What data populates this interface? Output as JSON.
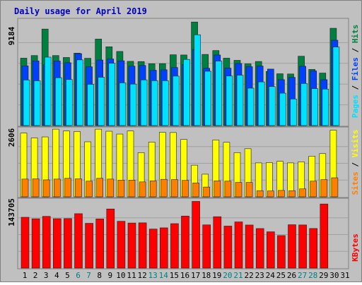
{
  "colors": {
    "background": "#c0c0c0",
    "hits": "#008040",
    "files": "#0040ff",
    "pages": "#00e0ff",
    "visits": "#ffff00",
    "sites": "#ff8000",
    "kbytes": "#ff0000",
    "title": "#0000c0",
    "weekend_label": "#008080"
  },
  "chart_data": [
    {
      "type": "bar",
      "title": "Daily usage for April 2019",
      "ymax_label": "9184",
      "ylim": [
        0,
        9184
      ],
      "legend": [
        "Pages",
        "Files",
        "Hits"
      ],
      "categories": [
        "1",
        "2",
        "3",
        "4",
        "5",
        "6",
        "7",
        "8",
        "9",
        "10",
        "11",
        "12",
        "13",
        "14",
        "15",
        "16",
        "17",
        "18",
        "19",
        "20",
        "21",
        "22",
        "23",
        "24",
        "25",
        "26",
        "27",
        "28",
        "29",
        "30",
        "31"
      ],
      "weekend_days": [
        "6",
        "7",
        "13",
        "14",
        "20",
        "21",
        "27",
        "28"
      ],
      "series": [
        {
          "name": "Hits",
          "values": [
            5930,
            6160,
            8490,
            6160,
            5990,
            6370,
            5920,
            7610,
            6930,
            6520,
            5650,
            5630,
            5440,
            5450,
            6230,
            6210,
            9110,
            6260,
            6600,
            5930,
            5740,
            5430,
            5640,
            4760,
            4560,
            4540,
            6100,
            4940,
            4620,
            8560,
            null
          ]
        },
        {
          "name": "Files",
          "values": [
            5250,
            5690,
            5350,
            5680,
            5530,
            6330,
            5170,
            5770,
            5860,
            5700,
            5230,
            5290,
            4870,
            4910,
            5110,
            5370,
            6700,
            5040,
            6210,
            5050,
            5460,
            5180,
            5240,
            4970,
            4040,
            4240,
            5220,
            4810,
            4040,
            7510,
            null
          ]
        },
        {
          "name": "Pages",
          "values": [
            4010,
            3940,
            6020,
            4210,
            4050,
            5780,
            3630,
            4250,
            5480,
            3760,
            3650,
            4020,
            3950,
            3950,
            4350,
            5820,
            7990,
            4780,
            5670,
            4360,
            4430,
            3290,
            3840,
            3430,
            2850,
            2340,
            3700,
            3250,
            3210,
            6910,
            null
          ]
        }
      ]
    },
    {
      "type": "bar",
      "ymax_label": "2606",
      "ylim": [
        0,
        2606
      ],
      "legend": [
        "Sites",
        "Visits"
      ],
      "categories": [
        "1",
        "2",
        "3",
        "4",
        "5",
        "6",
        "7",
        "8",
        "9",
        "10",
        "11",
        "12",
        "13",
        "14",
        "15",
        "16",
        "17",
        "18",
        "19",
        "20",
        "21",
        "22",
        "23",
        "24",
        "25",
        "26",
        "27",
        "28",
        "29",
        "30",
        "31"
      ],
      "series": [
        {
          "name": "Visits",
          "values": [
            2480,
            2290,
            2330,
            2630,
            2560,
            2540,
            2140,
            2630,
            2550,
            2440,
            2560,
            1720,
            2130,
            2510,
            2500,
            2230,
            1230,
            880,
            2210,
            2120,
            1720,
            1870,
            1320,
            1330,
            1380,
            1320,
            1360,
            1580,
            1680,
            2590,
            null
          ]
        },
        {
          "name": "Sites",
          "values": [
            690,
            700,
            660,
            690,
            720,
            700,
            610,
            720,
            690,
            650,
            650,
            580,
            620,
            680,
            670,
            640,
            540,
            380,
            620,
            610,
            560,
            560,
            240,
            230,
            250,
            240,
            310,
            610,
            670,
            740,
            null
          ]
        }
      ]
    },
    {
      "type": "bar",
      "ymax_label": "143705",
      "ylim": [
        0,
        143705
      ],
      "legend": [
        "KBytes"
      ],
      "categories": [
        "1",
        "2",
        "3",
        "4",
        "5",
        "6",
        "7",
        "8",
        "9",
        "10",
        "11",
        "12",
        "13",
        "14",
        "15",
        "16",
        "17",
        "18",
        "19",
        "20",
        "21",
        "22",
        "23",
        "24",
        "25",
        "26",
        "27",
        "28",
        "29",
        "30",
        "31"
      ],
      "series": [
        {
          "name": "KBytes",
          "values": [
            107800,
            104600,
            109700,
            104800,
            105000,
            115400,
            95000,
            104300,
            125400,
            99300,
            95600,
            96000,
            82800,
            85400,
            94300,
            110400,
            141500,
            91700,
            109000,
            89100,
            98000,
            91400,
            83900,
            77000,
            69000,
            92000,
            91500,
            84000,
            136000,
            null,
            null
          ]
        }
      ]
    }
  ]
}
